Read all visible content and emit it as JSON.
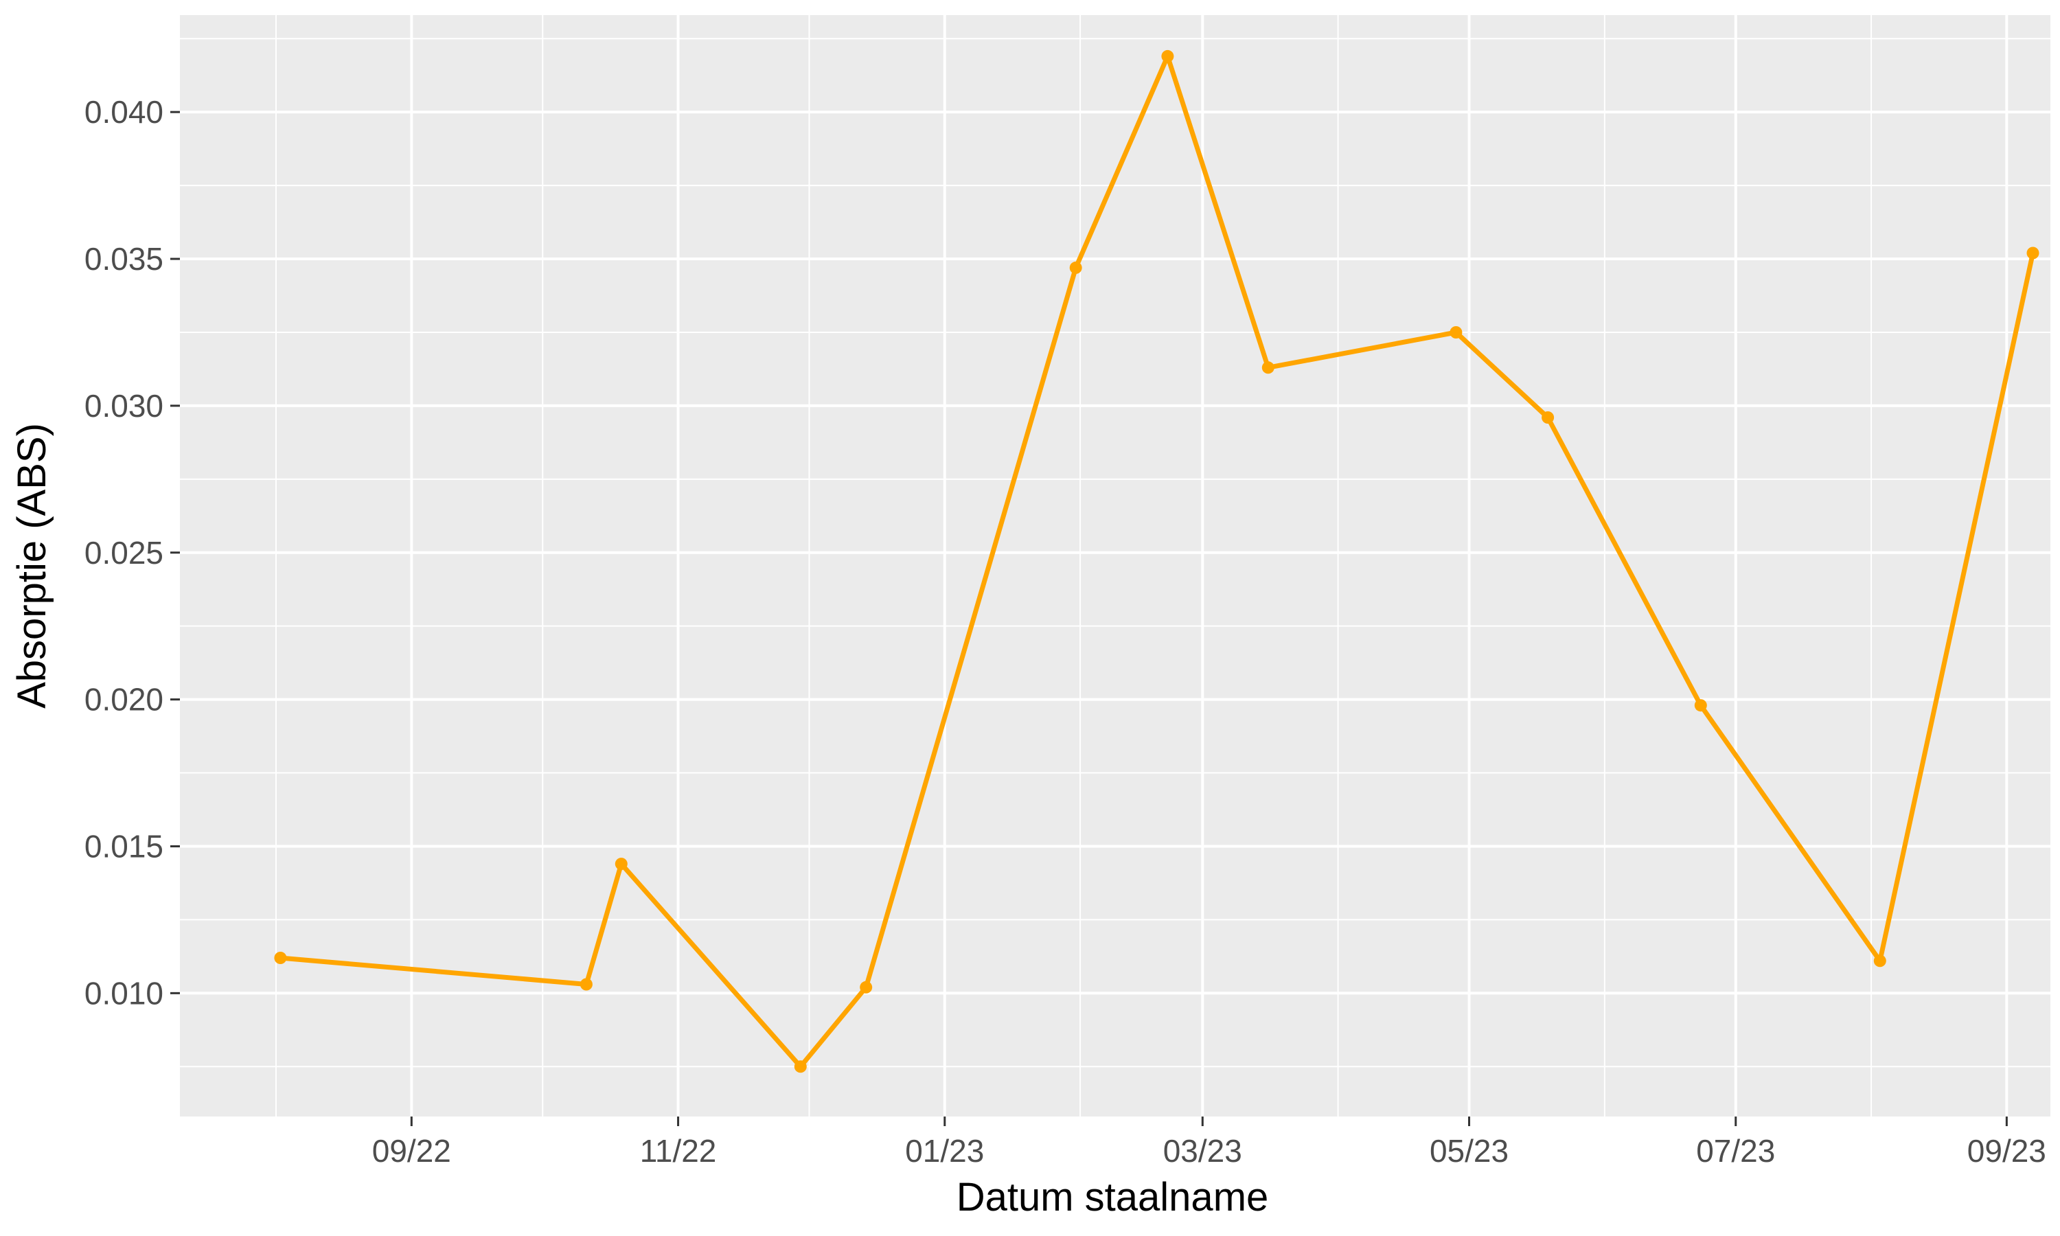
{
  "chart_data": {
    "type": "line",
    "title": "",
    "xlabel": "Datum staalname",
    "ylabel": "Absorptie (ABS)",
    "x_ticks": [
      {
        "date": "2022-09-01",
        "label": "09/22"
      },
      {
        "date": "2022-11-01",
        "label": "11/22"
      },
      {
        "date": "2023-01-01",
        "label": "01/23"
      },
      {
        "date": "2023-03-01",
        "label": "03/23"
      },
      {
        "date": "2023-05-01",
        "label": "05/23"
      },
      {
        "date": "2023-07-01",
        "label": "07/23"
      },
      {
        "date": "2023-09-01",
        "label": "09/23"
      }
    ],
    "x_minor_ticks": [
      "2022-08-01",
      "2022-10-01",
      "2022-12-01",
      "2023-02-01",
      "2023-04-01",
      "2023-06-01",
      "2023-08-01"
    ],
    "xlim": [
      "2022-07-10",
      "2023-09-11"
    ],
    "y_ticks": [
      0.01,
      0.015,
      0.02,
      0.025,
      0.03,
      0.035,
      0.04
    ],
    "y_tick_labels": [
      "0.010",
      "0.015",
      "0.020",
      "0.025",
      "0.030",
      "0.035",
      "0.040"
    ],
    "ylim": [
      0.0058,
      0.0433
    ],
    "grid": true,
    "series": [
      {
        "color": "#FFA500",
        "points": [
          {
            "x": "2022-08-02",
            "y": 0.0112
          },
          {
            "x": "2022-10-11",
            "y": 0.0103
          },
          {
            "x": "2022-10-19",
            "y": 0.0144
          },
          {
            "x": "2022-11-29",
            "y": 0.0075
          },
          {
            "x": "2022-12-14",
            "y": 0.0102
          },
          {
            "x": "2023-01-31",
            "y": 0.0347
          },
          {
            "x": "2023-02-21",
            "y": 0.0419
          },
          {
            "x": "2023-03-16",
            "y": 0.0313
          },
          {
            "x": "2023-04-28",
            "y": 0.0325
          },
          {
            "x": "2023-05-19",
            "y": 0.0296
          },
          {
            "x": "2023-06-23",
            "y": 0.0198
          },
          {
            "x": "2023-08-03",
            "y": 0.0111
          },
          {
            "x": "2023-09-07",
            "y": 0.0352
          }
        ]
      }
    ]
  }
}
